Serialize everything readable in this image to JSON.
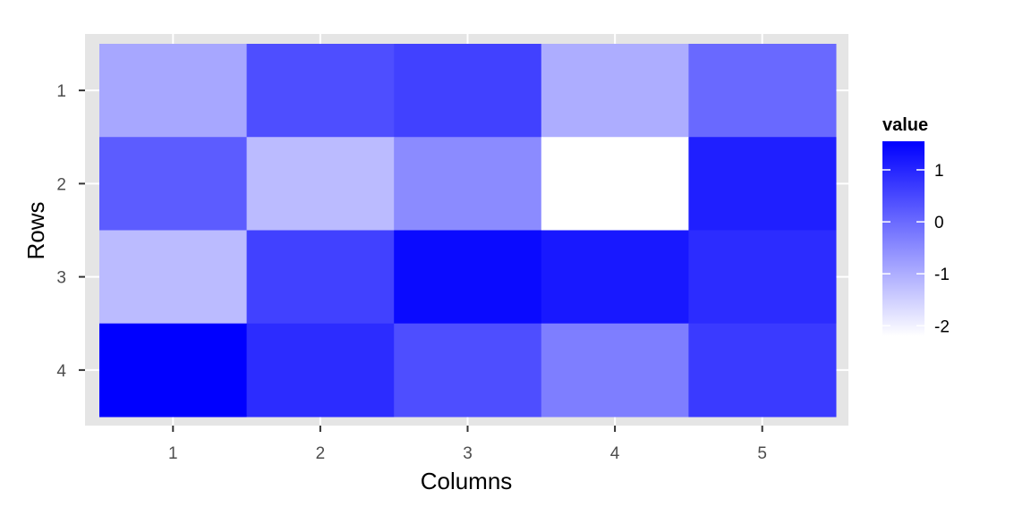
{
  "chart_data": {
    "type": "heatmap",
    "xlabel": "Columns",
    "ylabel": "Rows",
    "x_categories": [
      "1",
      "2",
      "3",
      "4",
      "5"
    ],
    "y_categories": [
      "1",
      "2",
      "3",
      "4"
    ],
    "values": [
      [
        -0.9,
        0.4,
        0.6,
        -1.0,
        0.0
      ],
      [
        0.2,
        -1.2,
        -0.5,
        -2.2,
        1.1
      ],
      [
        -1.2,
        0.6,
        1.4,
        1.2,
        0.9
      ],
      [
        1.55,
        0.9,
        0.4,
        -0.3,
        0.7
      ]
    ],
    "color_scale": {
      "low": "#ffffff",
      "high": "#0000ff",
      "min": -2.2,
      "max": 1.55
    },
    "legend": {
      "title": "value",
      "ticks": [
        "1",
        "0",
        "-1",
        "-2"
      ],
      "tick_values": [
        1,
        0,
        -1,
        -2
      ],
      "placement": "right"
    },
    "grid": true,
    "panel_background": "#e5e5e5",
    "grid_color": "#ffffff"
  }
}
